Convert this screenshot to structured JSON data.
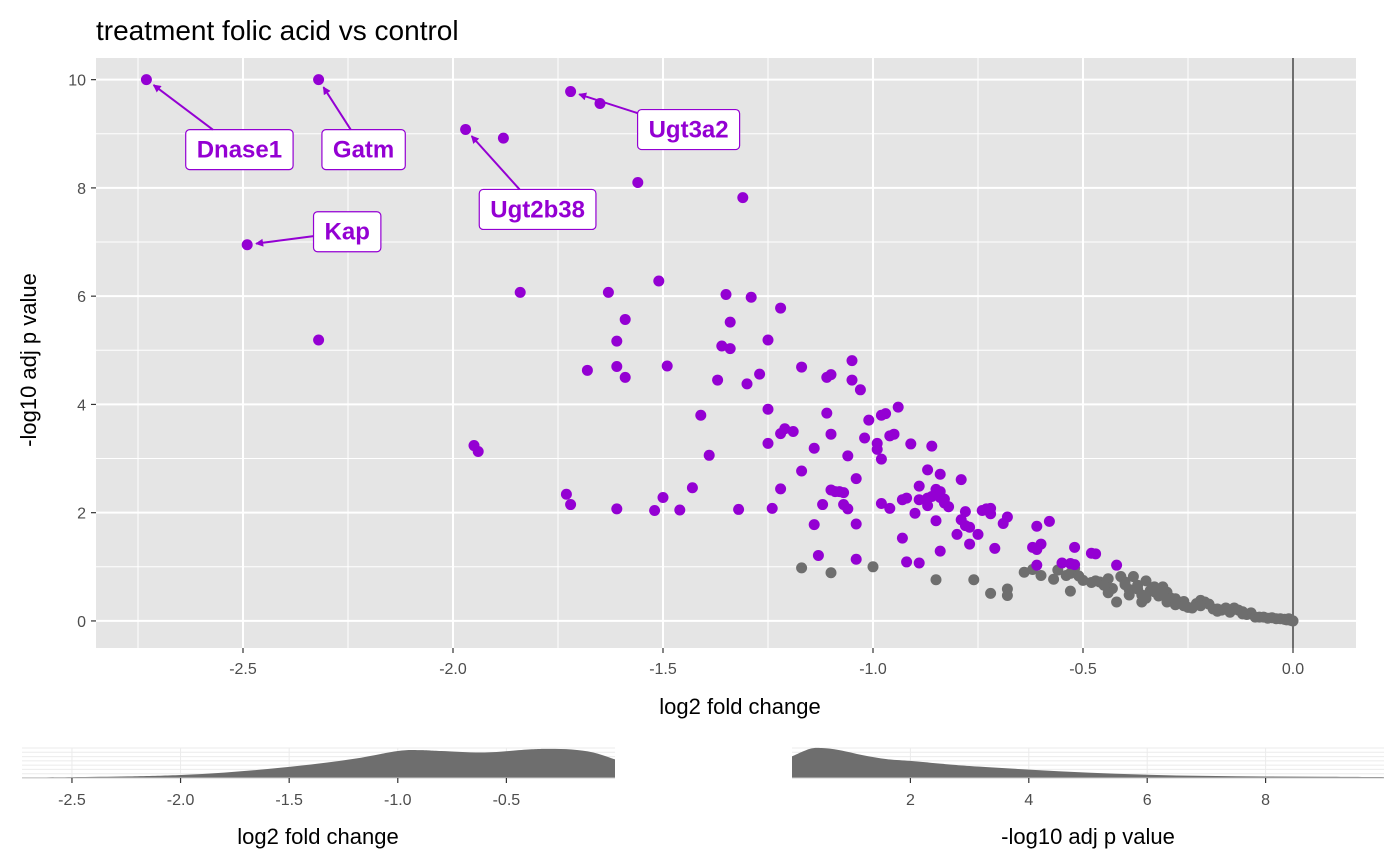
{
  "chart_data": [
    {
      "type": "scatter",
      "title": "treatment folic acid vs control",
      "xlabel": "log2 fold change",
      "ylabel": "-log10 adj p value",
      "xlim": [
        -2.85,
        0.15
      ],
      "ylim": [
        -0.5,
        10.4
      ],
      "x_ticks": [
        -2.5,
        -2.0,
        -1.5,
        -1.0,
        -0.5,
        0.0
      ],
      "x_tick_labels": [
        "-2.5",
        "-2.0",
        "-1.5",
        "-1.0",
        "-0.5",
        "0.0"
      ],
      "y_ticks": [
        0,
        2,
        4,
        6,
        8,
        10
      ],
      "y_tick_labels": [
        "0",
        "2",
        "4",
        "6",
        "8",
        "10"
      ],
      "vline_x": 0,
      "grid": true,
      "colors": {
        "significant": "#9400d3",
        "not_significant": "#6e6e6e",
        "panel_bg": "#e5e5e5",
        "grid": "#ffffff",
        "vline": "#6e6e6e"
      },
      "significant_points": [
        [
          -2.73,
          10.0
        ],
        [
          -2.32,
          10.0
        ],
        [
          -1.72,
          9.78
        ],
        [
          -1.65,
          9.56
        ],
        [
          -1.97,
          9.08
        ],
        [
          -1.88,
          8.92
        ],
        [
          -1.56,
          8.1
        ],
        [
          -1.31,
          7.82
        ],
        [
          -2.49,
          6.95
        ],
        [
          -1.84,
          6.07
        ],
        [
          -1.63,
          6.07
        ],
        [
          -1.51,
          6.28
        ],
        [
          -1.35,
          6.03
        ],
        [
          -1.29,
          5.98
        ],
        [
          -1.22,
          5.78
        ],
        [
          -1.34,
          5.52
        ],
        [
          -1.59,
          5.57
        ],
        [
          -2.32,
          5.19
        ],
        [
          -1.61,
          5.17
        ],
        [
          -1.36,
          5.08
        ],
        [
          -1.34,
          5.03
        ],
        [
          -1.25,
          5.19
        ],
        [
          -1.68,
          4.63
        ],
        [
          -1.61,
          4.7
        ],
        [
          -1.59,
          4.5
        ],
        [
          -1.49,
          4.71
        ],
        [
          -1.37,
          4.45
        ],
        [
          -1.3,
          4.38
        ],
        [
          -1.27,
          4.56
        ],
        [
          -1.17,
          4.69
        ],
        [
          -1.11,
          4.5
        ],
        [
          -1.1,
          4.55
        ],
        [
          -1.05,
          4.81
        ],
        [
          -1.05,
          4.45
        ],
        [
          -1.03,
          4.27
        ],
        [
          -1.41,
          3.8
        ],
        [
          -1.25,
          3.91
        ],
        [
          -1.11,
          3.84
        ],
        [
          -1.01,
          3.71
        ],
        [
          -0.98,
          3.8
        ],
        [
          -0.97,
          3.83
        ],
        [
          -0.94,
          3.95
        ],
        [
          -1.22,
          3.46
        ],
        [
          -1.21,
          3.55
        ],
        [
          -1.19,
          3.5
        ],
        [
          -1.1,
          3.45
        ],
        [
          -1.02,
          3.38
        ],
        [
          -0.99,
          3.28
        ],
        [
          -0.96,
          3.42
        ],
        [
          -0.95,
          3.45
        ],
        [
          -0.91,
          3.27
        ],
        [
          -1.95,
          3.24
        ],
        [
          -1.94,
          3.13
        ],
        [
          -1.39,
          3.06
        ],
        [
          -1.25,
          3.28
        ],
        [
          -1.14,
          3.19
        ],
        [
          -1.06,
          3.05
        ],
        [
          -0.99,
          3.17
        ],
        [
          -0.98,
          2.99
        ],
        [
          -0.86,
          3.23
        ],
        [
          -1.17,
          2.77
        ],
        [
          -1.04,
          2.63
        ],
        [
          -0.87,
          2.79
        ],
        [
          -0.84,
          2.71
        ],
        [
          -0.79,
          2.61
        ],
        [
          -1.43,
          2.46
        ],
        [
          -1.22,
          2.44
        ],
        [
          -1.1,
          2.42
        ],
        [
          -1.09,
          2.39
        ],
        [
          -1.08,
          2.39
        ],
        [
          -1.07,
          2.37
        ],
        [
          -0.89,
          2.49
        ],
        [
          -0.85,
          2.43
        ],
        [
          -0.84,
          2.39
        ],
        [
          -0.86,
          2.3
        ],
        [
          -0.87,
          2.27
        ],
        [
          -0.89,
          2.24
        ],
        [
          -0.92,
          2.27
        ],
        [
          -0.93,
          2.24
        ],
        [
          -0.84,
          2.28
        ],
        [
          -0.83,
          2.18
        ],
        [
          -0.83,
          2.25
        ],
        [
          -1.73,
          2.34
        ],
        [
          -1.72,
          2.15
        ],
        [
          -1.61,
          2.07
        ],
        [
          -1.52,
          2.04
        ],
        [
          -1.5,
          2.28
        ],
        [
          -1.46,
          2.05
        ],
        [
          -1.32,
          2.06
        ],
        [
          -1.24,
          2.08
        ],
        [
          -1.12,
          2.15
        ],
        [
          -1.07,
          2.15
        ],
        [
          -1.06,
          2.07
        ],
        [
          -0.98,
          2.17
        ],
        [
          -0.96,
          2.08
        ],
        [
          -0.9,
          1.99
        ],
        [
          -0.87,
          2.13
        ],
        [
          -0.82,
          2.11
        ],
        [
          -0.78,
          2.02
        ],
        [
          -0.74,
          2.04
        ],
        [
          -0.73,
          2.07
        ],
        [
          -0.72,
          1.98
        ],
        [
          -0.72,
          2.08
        ],
        [
          -0.68,
          1.92
        ],
        [
          -0.79,
          1.87
        ],
        [
          -0.78,
          1.76
        ],
        [
          -0.77,
          1.73
        ],
        [
          -0.69,
          1.8
        ],
        [
          -1.14,
          1.78
        ],
        [
          -1.04,
          1.79
        ],
        [
          -0.85,
          1.85
        ],
        [
          -0.8,
          1.6
        ],
        [
          -0.75,
          1.6
        ],
        [
          -0.61,
          1.75
        ],
        [
          -0.58,
          1.84
        ],
        [
          -0.93,
          1.53
        ],
        [
          -0.77,
          1.42
        ],
        [
          -0.71,
          1.34
        ],
        [
          -0.62,
          1.36
        ],
        [
          -0.6,
          1.42
        ],
        [
          -0.61,
          1.32
        ],
        [
          -0.52,
          1.36
        ],
        [
          -0.48,
          1.25
        ],
        [
          -0.47,
          1.24
        ],
        [
          -0.84,
          1.29
        ],
        [
          -1.13,
          1.21
        ],
        [
          -1.04,
          1.14
        ],
        [
          -0.92,
          1.09
        ],
        [
          -0.89,
          1.07
        ],
        [
          -0.55,
          1.07
        ],
        [
          -0.53,
          1.06
        ],
        [
          -0.52,
          1.04
        ],
        [
          -0.61,
          1.03
        ],
        [
          -0.42,
          1.03
        ]
      ],
      "nonsignificant_points": [
        [
          -1.17,
          0.98
        ],
        [
          -1.1,
          0.89
        ],
        [
          -1.0,
          1.0
        ],
        [
          -0.85,
          0.76
        ],
        [
          -0.76,
          0.76
        ],
        [
          -0.72,
          0.51
        ],
        [
          -0.68,
          0.59
        ],
        [
          -0.68,
          0.47
        ],
        [
          -0.64,
          0.9
        ],
        [
          -0.62,
          0.95
        ],
        [
          -0.6,
          0.84
        ],
        [
          -0.57,
          0.77
        ],
        [
          -0.56,
          0.94
        ],
        [
          -0.54,
          0.84
        ],
        [
          -0.53,
          0.88
        ],
        [
          -0.52,
          0.97
        ],
        [
          -0.51,
          0.83
        ],
        [
          -0.5,
          0.75
        ],
        [
          -0.48,
          0.71
        ],
        [
          -0.46,
          0.72
        ],
        [
          -0.44,
          0.78
        ],
        [
          -0.43,
          0.6
        ],
        [
          -0.42,
          0.35
        ],
        [
          -0.41,
          0.82
        ],
        [
          -0.4,
          0.72
        ],
        [
          -0.39,
          0.58
        ],
        [
          -0.39,
          0.48
        ],
        [
          -0.38,
          0.82
        ],
        [
          -0.37,
          0.66
        ],
        [
          -0.36,
          0.48
        ],
        [
          -0.35,
          0.74
        ],
        [
          -0.34,
          0.56
        ],
        [
          -0.33,
          0.63
        ],
        [
          -0.32,
          0.46
        ],
        [
          -0.31,
          0.63
        ],
        [
          -0.3,
          0.53
        ],
        [
          -0.29,
          0.42
        ],
        [
          -0.28,
          0.41
        ],
        [
          -0.27,
          0.33
        ],
        [
          -0.26,
          0.36
        ],
        [
          -0.25,
          0.25
        ],
        [
          -0.24,
          0.24
        ],
        [
          -0.23,
          0.32
        ],
        [
          -0.22,
          0.38
        ],
        [
          -0.21,
          0.35
        ],
        [
          -0.2,
          0.31
        ],
        [
          -0.19,
          0.22
        ],
        [
          -0.18,
          0.18
        ],
        [
          -0.17,
          0.2
        ],
        [
          -0.16,
          0.24
        ],
        [
          -0.15,
          0.16
        ],
        [
          -0.14,
          0.24
        ],
        [
          -0.13,
          0.2
        ],
        [
          -0.12,
          0.13
        ],
        [
          -0.11,
          0.12
        ],
        [
          -0.1,
          0.15
        ],
        [
          -0.09,
          0.07
        ],
        [
          -0.08,
          0.07
        ],
        [
          -0.07,
          0.07
        ],
        [
          -0.06,
          0.05
        ],
        [
          -0.05,
          0.06
        ],
        [
          -0.04,
          0.04
        ],
        [
          -0.03,
          0.04
        ],
        [
          -0.02,
          0.03
        ],
        [
          -0.015,
          0.02
        ],
        [
          -0.01,
          0.04
        ],
        [
          -0.005,
          0.01
        ],
        [
          0.0,
          0.0
        ],
        [
          -0.53,
          0.55
        ],
        [
          -0.44,
          0.52
        ],
        [
          -0.35,
          0.42
        ],
        [
          -0.3,
          0.35
        ],
        [
          -0.28,
          0.3
        ],
        [
          -0.26,
          0.28
        ],
        [
          -0.4,
          0.67
        ],
        [
          -0.37,
          0.59
        ],
        [
          -0.33,
          0.54
        ],
        [
          -0.31,
          0.5
        ],
        [
          -0.36,
          0.35
        ],
        [
          -0.22,
          0.28
        ],
        [
          -0.18,
          0.22
        ],
        [
          -0.12,
          0.17
        ],
        [
          -0.47,
          0.74
        ],
        [
          -0.45,
          0.66
        ]
      ],
      "labels": [
        {
          "text": "Dnase1",
          "x": -2.73,
          "y": 10.0
        },
        {
          "text": "Gatm",
          "x": -2.32,
          "y": 10.0
        },
        {
          "text": "Ugt3a2",
          "x": -1.72,
          "y": 9.78
        },
        {
          "text": "Ugt2b38",
          "x": -1.97,
          "y": 9.08
        },
        {
          "text": "Kap",
          "x": -2.49,
          "y": 6.95
        }
      ]
    },
    {
      "type": "area",
      "xlabel": "log2 fold change",
      "xlim": [
        -2.73,
        0.0
      ],
      "x_ticks": [
        -2.5,
        -2.0,
        -1.5,
        -1.0,
        -0.5
      ],
      "x_tick_labels": [
        "-2.5",
        "-2.0",
        "-1.5",
        "-1.0",
        "-0.5"
      ],
      "fill": "#6e6e6e",
      "density_x": [
        -2.73,
        -2.5,
        -2.2,
        -2.0,
        -1.8,
        -1.6,
        -1.4,
        -1.2,
        -1.0,
        -0.9,
        -0.8,
        -0.6,
        -0.4,
        -0.3,
        -0.2,
        -0.1,
        0.0
      ],
      "density_y": [
        0.02,
        0.03,
        0.06,
        0.1,
        0.18,
        0.3,
        0.45,
        0.64,
        0.9,
        0.93,
        0.9,
        0.85,
        0.95,
        0.97,
        0.95,
        0.85,
        0.62
      ]
    },
    {
      "type": "area",
      "xlabel": "-log10 adj p value",
      "xlim": [
        0.0,
        10.0
      ],
      "x_ticks": [
        2,
        4,
        6,
        8
      ],
      "x_tick_labels": [
        "2",
        "4",
        "6",
        "8"
      ],
      "fill": "#6e6e6e",
      "density_x": [
        0.0,
        0.3,
        0.5,
        0.8,
        1.2,
        1.6,
        2.0,
        2.5,
        3.0,
        4.0,
        5.0,
        6.0,
        7.0,
        8.0,
        9.0,
        10.0
      ],
      "density_y": [
        0.72,
        0.97,
        1.0,
        0.93,
        0.76,
        0.63,
        0.57,
        0.48,
        0.4,
        0.28,
        0.18,
        0.11,
        0.07,
        0.05,
        0.04,
        0.03
      ]
    }
  ]
}
